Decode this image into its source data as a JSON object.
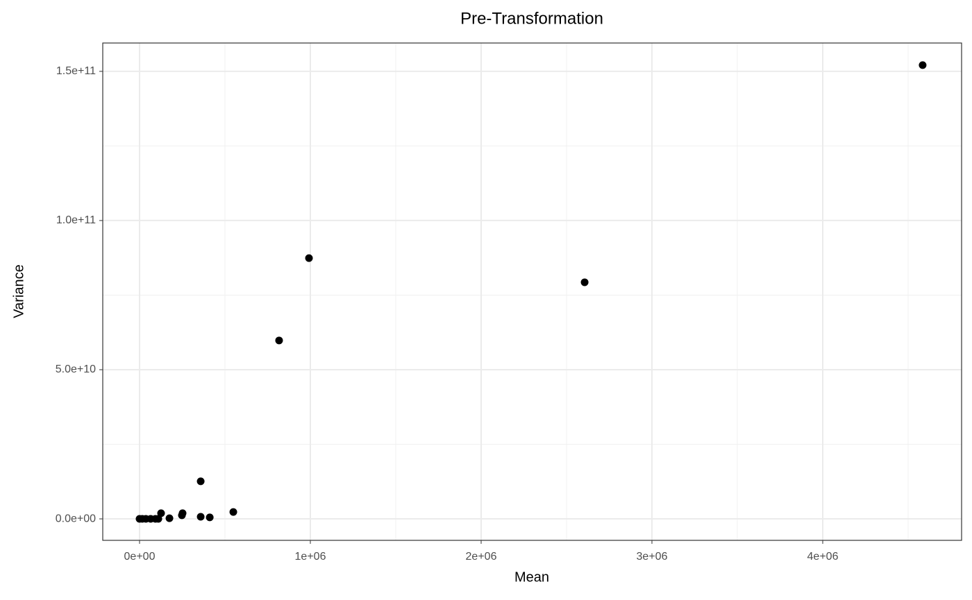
{
  "chart_data": {
    "type": "scatter",
    "title": "Pre-Transformation",
    "x_label": "Mean",
    "y_label": "Variance",
    "series": [
      {
        "color": "#000000",
        "x": [
          0,
          16000,
          37000,
          65000,
          93000,
          110000,
          126000,
          175000,
          248000,
          252000,
          358000,
          358000,
          411000,
          549000,
          817000,
          992000,
          2606000,
          4585000
        ],
        "values": [
          0,
          0,
          0,
          0,
          0,
          0,
          1900000000,
          200000000,
          1200000000,
          1900000000,
          12600000000,
          700000000,
          500000000,
          2300000000,
          59800000000,
          87400000000,
          79300000000,
          152100000000
        ]
      }
    ],
    "xlim": [
      -215447,
      4813000
    ],
    "ylim": [
      -7200000000,
      159500000000
    ],
    "xticks": [
      {
        "value": 0,
        "label": "0e+00"
      },
      {
        "value": 1000000,
        "label": "1e+06"
      },
      {
        "value": 2000000,
        "label": "2e+06"
      },
      {
        "value": 3000000,
        "label": "3e+06"
      },
      {
        "value": 4000000,
        "label": "4e+06"
      }
    ],
    "yticks": [
      {
        "value": 0,
        "label": "0.0e+00"
      },
      {
        "value": 50000000000,
        "label": "5.0e+10"
      },
      {
        "value": 100000000000,
        "label": "1.0e+11"
      },
      {
        "value": 150000000000,
        "label": "1.5e+11"
      }
    ],
    "xminorticks": [
      500000,
      1500000,
      2500000,
      3500000,
      4500000
    ],
    "yminorticks": [
      25000000000,
      75000000000,
      125000000000
    ],
    "grid": true
  }
}
